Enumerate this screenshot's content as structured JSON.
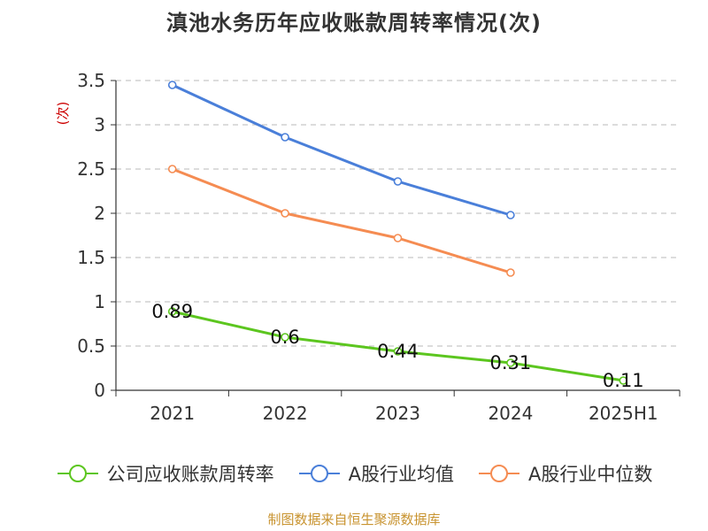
{
  "chart_data": {
    "type": "line",
    "title": "滇池水务历年应收账款周转率情况(次)",
    "ylabel": "(次)",
    "xlabel": "",
    "categories": [
      "2021",
      "2022",
      "2023",
      "2024",
      "2025H1"
    ],
    "ylim": [
      0,
      3.5
    ],
    "yticks": [
      "0",
      "0.5",
      "1",
      "1.5",
      "2",
      "2.5",
      "3",
      "3.5"
    ],
    "grid": true,
    "legend_position": "bottom",
    "series": [
      {
        "name": "公司应收账款周转率",
        "color": "#5cc61f",
        "values": [
          0.89,
          0.6,
          0.44,
          0.31,
          0.11
        ],
        "labels": [
          "0.89",
          "0.6",
          "0.44",
          "0.31",
          "0.11"
        ]
      },
      {
        "name": "A股行业均值",
        "color": "#4a7fd9",
        "values": [
          3.45,
          2.86,
          2.36,
          1.98,
          null
        ],
        "labels": []
      },
      {
        "name": "A股行业中位数",
        "color": "#f58c52",
        "values": [
          2.5,
          2.0,
          1.72,
          1.33,
          null
        ],
        "labels": []
      }
    ]
  },
  "footer": {
    "source": "制图数据来自恒生聚源数据库"
  }
}
